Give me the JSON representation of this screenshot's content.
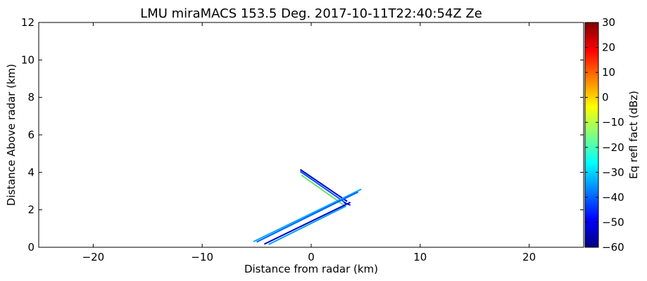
{
  "chart_data": {
    "type": "scatter",
    "title": "LMU miraMACS 153.5 Deg. 2017-10-11T22:40:54Z  Ze",
    "xlabel": "Distance from radar (km)",
    "ylabel": "Distance Above radar  (km)",
    "xlim": [
      -25,
      25
    ],
    "ylim": [
      0,
      12
    ],
    "xticks": [
      -20,
      -10,
      0,
      10,
      20
    ],
    "yticks": [
      0,
      2,
      4,
      6,
      8,
      10,
      12
    ],
    "grid": false,
    "colorbar": {
      "label": "Eq refl fact (dBz)",
      "range": [
        -60,
        30
      ],
      "ticks": [
        30,
        20,
        10,
        0,
        -10,
        -20,
        -30,
        -40,
        -50,
        -60
      ],
      "colormap": [
        "#00007f",
        "#0000ff",
        "#007fff",
        "#00ffff",
        "#7fff7f",
        "#ffff00",
        "#ff7f00",
        "#ff0000",
        "#7f0000"
      ]
    },
    "series": [
      {
        "points": [
          [
            -1.0,
            4.15
          ],
          [
            3.3,
            2.45
          ]
        ],
        "dbz": -45,
        "color": "#0000d0"
      },
      {
        "points": [
          [
            -1.0,
            4.05
          ],
          [
            3.2,
            2.35
          ]
        ],
        "dbz": -38,
        "color": "#0050ff"
      },
      {
        "points": [
          [
            -0.9,
            3.85
          ],
          [
            3.0,
            2.25
          ]
        ],
        "dbz": -18,
        "color": "#70e070"
      },
      {
        "points": [
          [
            -5.3,
            0.3
          ],
          [
            4.6,
            3.1
          ]
        ],
        "dbz": -32,
        "color": "#00a8ff"
      },
      {
        "points": [
          [
            -5.0,
            0.28
          ],
          [
            4.3,
            2.95
          ]
        ],
        "dbz": -40,
        "color": "#0060ff"
      },
      {
        "points": [
          [
            -4.3,
            0.17
          ],
          [
            3.6,
            2.4
          ]
        ],
        "dbz": -52,
        "color": "#0000c0"
      },
      {
        "points": [
          [
            -3.9,
            0.15
          ],
          [
            3.2,
            2.2
          ]
        ],
        "dbz": -34,
        "color": "#00a0ff"
      },
      {
        "points": [
          [
            3.0,
            2.38
          ],
          [
            3.6,
            2.25
          ]
        ],
        "dbz": -45,
        "color": "#0000ff"
      }
    ]
  }
}
